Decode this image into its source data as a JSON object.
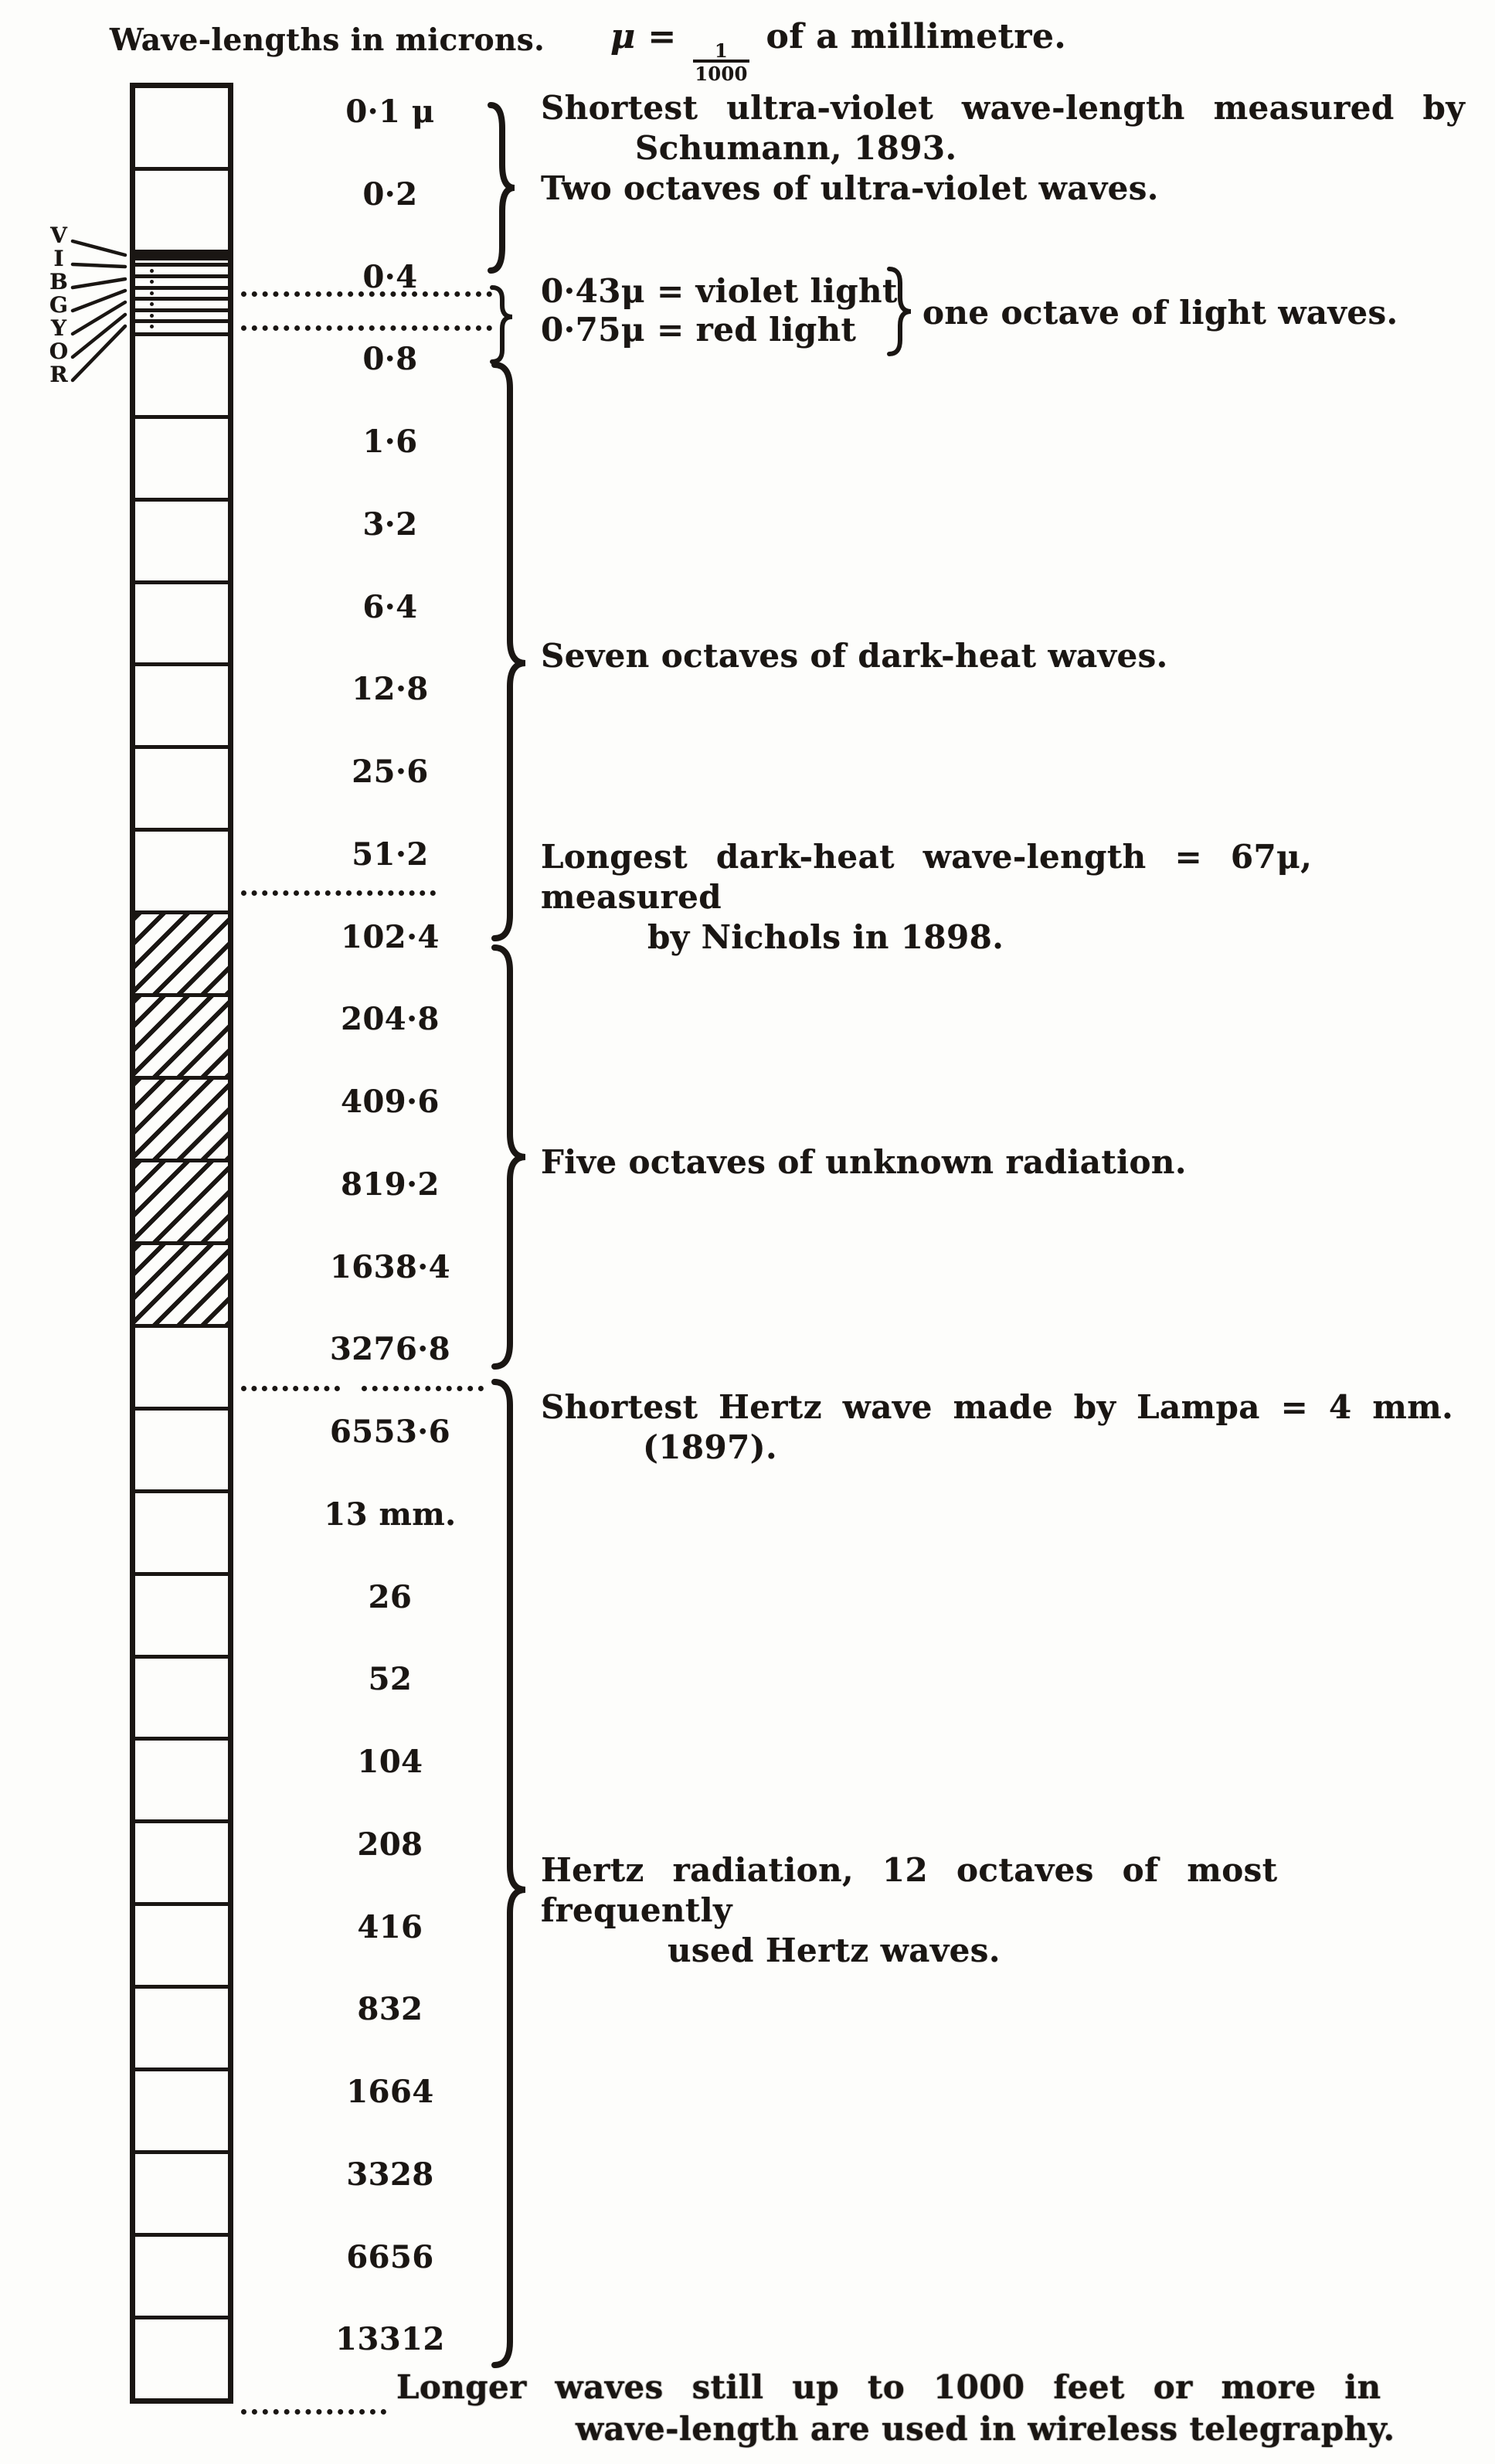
{
  "heading": "Wave-lengths in microns.",
  "mu_note": {
    "mu": "μ",
    "equals": " = ",
    "fraction_numerator": "1",
    "fraction_denominator": "1000",
    "suffix": " of a millimetre."
  },
  "ladder": {
    "boundary_labels": [
      "0·1 μ",
      "0·2",
      "0·4",
      "0·8",
      "1·6",
      "3·2",
      "6·4",
      "12·8",
      "25·6",
      "51·2",
      "102·4",
      "204·8",
      "409·6",
      "819·2",
      "1638·4",
      "3276·8",
      "6553·6",
      "13 mm.",
      "26",
      "52",
      "104",
      "208",
      "416",
      "832",
      "1664",
      "3328",
      "6656",
      "13312"
    ],
    "hatched_cells": [
      10,
      11,
      12,
      13,
      14
    ],
    "spectrum_cell": 2,
    "spectrum_letters": [
      "V",
      "I",
      "B",
      "G",
      "Y",
      "O",
      "R"
    ]
  },
  "annotations": {
    "uv_line1": "Shortest ultra-violet wave-length measured by",
    "uv_line2": "Schumann, 1893.",
    "uv_line3": "Two octaves of ultra-violet waves.",
    "violet_light": "0·43μ = violet light",
    "red_light": "0·75μ = red light",
    "light_octave": "one octave of light waves.",
    "dark_heat": "Seven octaves of dark-heat waves.",
    "longest_line1": "Longest dark-heat wave-length = 67μ, measured",
    "longest_line2": "by Nichols in 1898.",
    "unknown": "Five octaves of unknown radiation.",
    "hertz_short_line1": "Shortest Hertz wave made by Lampa = 4 mm.",
    "hertz_short_line2": "(1897).",
    "hertz_line1": "Hertz radiation, 12 octaves of most frequently",
    "hertz_line2": "used Hertz waves.",
    "wireless_line1": "Longer waves still up to 1000 feet or more in",
    "wireless_line2": "wave-length are used in wireless telegraphy."
  },
  "colors": {
    "ink": "#1a1613",
    "paper": "#fdfdfb"
  }
}
